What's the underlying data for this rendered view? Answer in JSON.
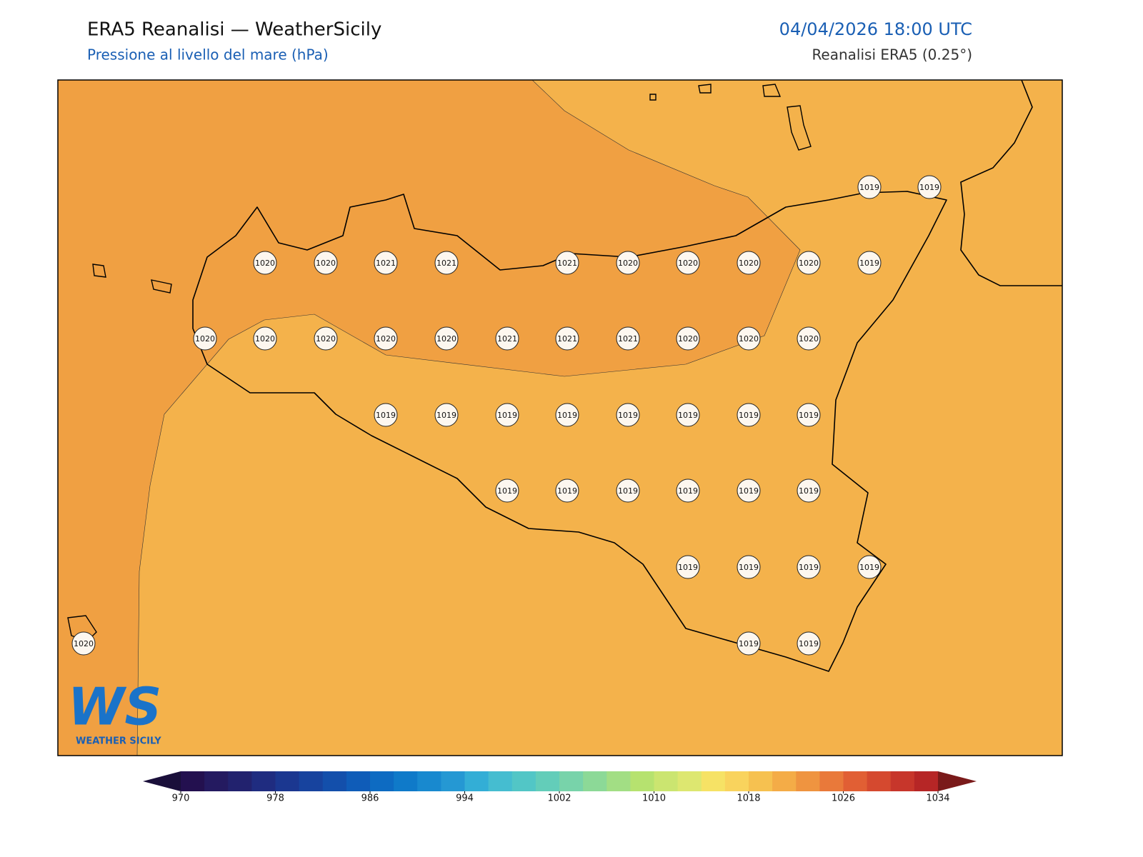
{
  "header": {
    "title": "ERA5 Reanalisi — WeatherSicily",
    "subtitle": "Pressione al livello del mare (hPa)",
    "datetime": "04/04/2026 18:00 UTC",
    "source": "Reanalisi ERA5 (0.25°)"
  },
  "map": {
    "field_colors": [
      "#f4b24b",
      "#f0a042"
    ],
    "stations": [
      1019,
      1019,
      1020,
      1020,
      1021,
      1021,
      1021,
      1020,
      1020,
      1020,
      1020,
      1019,
      1020,
      1020,
      1020,
      1020,
      1020,
      1021,
      1021,
      1021,
      1020,
      1020,
      1020,
      1019,
      1019,
      1019,
      1019,
      1019,
      1019,
      1019,
      1019,
      1019,
      1019,
      1019,
      1019,
      1019,
      1019,
      1019,
      1019,
      1019,
      1019,
      1020,
      1019,
      1019
    ]
  },
  "logo": {
    "mark": "WS",
    "name": "WEATHER SICILY"
  },
  "colorbar": {
    "range": [
      970,
      1034
    ],
    "ticks": [
      970,
      978,
      986,
      994,
      1002,
      1010,
      1018,
      1026,
      1034
    ],
    "colors": [
      "#23104f",
      "#241a60",
      "#22226e",
      "#1f2c80",
      "#1b3790",
      "#17439e",
      "#134fab",
      "#0f5cb8",
      "#0d6bc2",
      "#0f7ac9",
      "#1889cf",
      "#2598d3",
      "#33aed6",
      "#45bdd0",
      "#52c6c6",
      "#63cdb9",
      "#78d3aa",
      "#8cd997",
      "#a2de84",
      "#b6e26f",
      "#cbe570",
      "#dde770",
      "#f6e265",
      "#f9d35d",
      "#f6c150",
      "#f4ac47",
      "#ef9440",
      "#e9793a",
      "#e15f34",
      "#d5492f",
      "#c7362b",
      "#b62626"
    ],
    "under": "#1a0f3a",
    "over": "#7a1a1a"
  }
}
